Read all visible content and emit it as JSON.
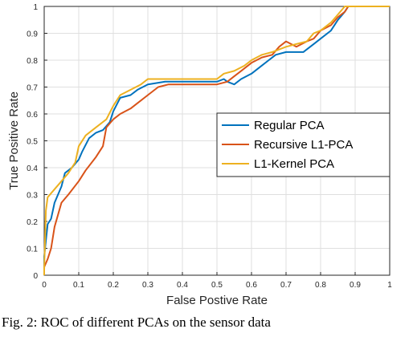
{
  "caption": "Fig. 2: ROC of different PCAs on the sensor data",
  "chart_data": {
    "type": "line",
    "xlabel": "False Postive Rate",
    "ylabel": "True Positive Rate",
    "xlim": [
      0,
      1
    ],
    "ylim": [
      0,
      1
    ],
    "xticks": [
      "0",
      "0.1",
      "0.2",
      "0.3",
      "0.4",
      "0.5",
      "0.6",
      "0.7",
      "0.8",
      "0.9",
      "1"
    ],
    "yticks": [
      "0",
      "0.1",
      "0.2",
      "0.3",
      "0.4",
      "0.5",
      "0.6",
      "0.7",
      "0.8",
      "0.9",
      "1"
    ],
    "grid": true,
    "legend_position": "center-right",
    "series": [
      {
        "name": "Regular PCA",
        "color": "#0072BD",
        "points": [
          [
            0,
            0
          ],
          [
            0,
            0.07
          ],
          [
            0.01,
            0.19
          ],
          [
            0.02,
            0.21
          ],
          [
            0.03,
            0.27
          ],
          [
            0.05,
            0.33
          ],
          [
            0.06,
            0.38
          ],
          [
            0.08,
            0.4
          ],
          [
            0.1,
            0.43
          ],
          [
            0.11,
            0.46
          ],
          [
            0.13,
            0.51
          ],
          [
            0.15,
            0.53
          ],
          [
            0.17,
            0.54
          ],
          [
            0.19,
            0.57
          ],
          [
            0.2,
            0.61
          ],
          [
            0.22,
            0.66
          ],
          [
            0.25,
            0.67
          ],
          [
            0.27,
            0.69
          ],
          [
            0.3,
            0.71
          ],
          [
            0.35,
            0.72
          ],
          [
            0.4,
            0.72
          ],
          [
            0.45,
            0.72
          ],
          [
            0.5,
            0.72
          ],
          [
            0.52,
            0.73
          ],
          [
            0.53,
            0.72
          ],
          [
            0.55,
            0.71
          ],
          [
            0.57,
            0.73
          ],
          [
            0.6,
            0.75
          ],
          [
            0.63,
            0.78
          ],
          [
            0.65,
            0.8
          ],
          [
            0.67,
            0.82
          ],
          [
            0.7,
            0.83
          ],
          [
            0.75,
            0.83
          ],
          [
            0.78,
            0.86
          ],
          [
            0.8,
            0.88
          ],
          [
            0.83,
            0.91
          ],
          [
            0.85,
            0.95
          ],
          [
            0.87,
            0.98
          ],
          [
            0.88,
            1.0
          ],
          [
            1,
            1.0
          ]
        ]
      },
      {
        "name": "Recursive L1-PCA",
        "color": "#D95319",
        "points": [
          [
            0,
            0
          ],
          [
            0,
            0.03
          ],
          [
            0.01,
            0.06
          ],
          [
            0.02,
            0.1
          ],
          [
            0.03,
            0.18
          ],
          [
            0.05,
            0.27
          ],
          [
            0.07,
            0.3
          ],
          [
            0.1,
            0.35
          ],
          [
            0.12,
            0.39
          ],
          [
            0.15,
            0.44
          ],
          [
            0.17,
            0.48
          ],
          [
            0.18,
            0.55
          ],
          [
            0.2,
            0.58
          ],
          [
            0.22,
            0.6
          ],
          [
            0.25,
            0.62
          ],
          [
            0.27,
            0.64
          ],
          [
            0.3,
            0.67
          ],
          [
            0.33,
            0.7
          ],
          [
            0.36,
            0.71
          ],
          [
            0.4,
            0.71
          ],
          [
            0.45,
            0.71
          ],
          [
            0.5,
            0.71
          ],
          [
            0.53,
            0.72
          ],
          [
            0.55,
            0.74
          ],
          [
            0.57,
            0.76
          ],
          [
            0.6,
            0.79
          ],
          [
            0.63,
            0.81
          ],
          [
            0.66,
            0.82
          ],
          [
            0.68,
            0.85
          ],
          [
            0.7,
            0.87
          ],
          [
            0.73,
            0.85
          ],
          [
            0.76,
            0.87
          ],
          [
            0.78,
            0.88
          ],
          [
            0.8,
            0.91
          ],
          [
            0.83,
            0.93
          ],
          [
            0.85,
            0.96
          ],
          [
            0.87,
            0.98
          ],
          [
            0.88,
            1.0
          ],
          [
            1,
            1.0
          ]
        ]
      },
      {
        "name": "L1-Kernel PCA",
        "color": "#EDB120",
        "points": [
          [
            0,
            0
          ],
          [
            0,
            0.02
          ],
          [
            0.005,
            0.24
          ],
          [
            0.01,
            0.29
          ],
          [
            0.03,
            0.32
          ],
          [
            0.05,
            0.35
          ],
          [
            0.07,
            0.38
          ],
          [
            0.09,
            0.42
          ],
          [
            0.1,
            0.48
          ],
          [
            0.12,
            0.52
          ],
          [
            0.15,
            0.55
          ],
          [
            0.18,
            0.58
          ],
          [
            0.2,
            0.63
          ],
          [
            0.22,
            0.67
          ],
          [
            0.25,
            0.69
          ],
          [
            0.28,
            0.71
          ],
          [
            0.3,
            0.73
          ],
          [
            0.35,
            0.73
          ],
          [
            0.4,
            0.73
          ],
          [
            0.45,
            0.73
          ],
          [
            0.5,
            0.73
          ],
          [
            0.52,
            0.75
          ],
          [
            0.55,
            0.76
          ],
          [
            0.58,
            0.78
          ],
          [
            0.6,
            0.8
          ],
          [
            0.63,
            0.82
          ],
          [
            0.66,
            0.83
          ],
          [
            0.7,
            0.85
          ],
          [
            0.73,
            0.86
          ],
          [
            0.76,
            0.87
          ],
          [
            0.78,
            0.9
          ],
          [
            0.8,
            0.91
          ],
          [
            0.83,
            0.94
          ],
          [
            0.85,
            0.97
          ],
          [
            0.87,
            1.0
          ],
          [
            1,
            1.0
          ]
        ]
      }
    ]
  }
}
